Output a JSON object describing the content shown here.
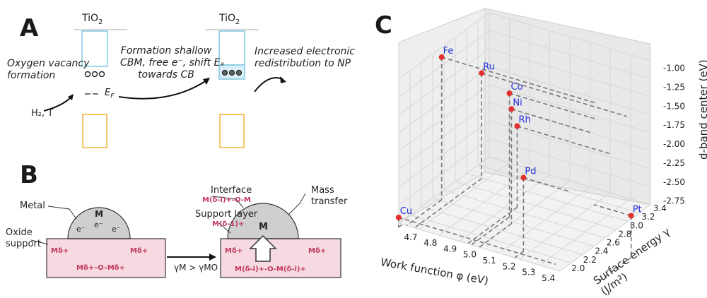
{
  "panel_a": {
    "letter": "A",
    "tio2_left": "TiO",
    "tio2_right": "TiO",
    "tio2_sub": "2",
    "oxygen_vacancy": "Oxygen vacancy\nformation",
    "formation_shallow": "Formation shallow\nCBM, free e⁻, shift Eₓ\ntowards CB",
    "increased": "Increased electronic\nredistribution to NP",
    "h2": "H₂, T",
    "ef": "E",
    "ef_sub": "F",
    "colors": {
      "cb": "#7ec8e3",
      "vb": "#f2b233",
      "arrow": "#111111"
    }
  },
  "panel_b": {
    "letter": "B",
    "metal": "Metal",
    "oxide": "Oxide\nsupport",
    "m_label": "M",
    "e_label": "e⁻",
    "md_plus": "Mᵟ⁺",
    "md_left": "Mδ+",
    "md_o_md": "Mδ+–O–Mδ+",
    "interface": "Interface",
    "interface_formula": "M(δ-i)+-O-M",
    "support_layer": "Support layer",
    "support_formula": "M(δ-1)+",
    "mass_transfer": "Mass\ntransfer",
    "bottom_formula": "M(δ-i)+-O-M(δ-i)+",
    "gamma": "γM > γMO",
    "colors": {
      "support": "#f7d9e1",
      "metal": "#c8c8c8",
      "accent": "#c0395f"
    }
  },
  "panel_c": {
    "letter": "C",
    "chart_data": {
      "type": "scatter",
      "xlabel": "Work function φ (eV)",
      "ylabel": "Surface energy γ (J/m²)",
      "zlabel": "d-band center (eV)",
      "x_ticks": [
        "4.7",
        "4.8",
        "4.9",
        "5.0",
        "5.1",
        "5.2",
        "5.3",
        "5.4"
      ],
      "y_ticks": [
        "2.0",
        "2.2",
        "2.4",
        "2.6",
        "2.8",
        "3.0",
        "3.2",
        "3.4"
      ],
      "z_ticks": [
        "-1.00",
        "-1.25",
        "-1.50",
        "-1.75",
        "-2.00",
        "-2.25",
        "-2.50",
        "-2.75"
      ],
      "points": [
        {
          "label": "Fe",
          "x": 4.67,
          "y": 2.5,
          "z": -0.92
        },
        {
          "label": "Ru",
          "x": 4.71,
          "y": 3.05,
          "z": -1.41
        },
        {
          "label": "Co",
          "x": 5.0,
          "y": 2.55,
          "z": -1.17
        },
        {
          "label": "Rh",
          "x": 4.98,
          "y": 2.75,
          "z": -1.73
        },
        {
          "label": "Ni",
          "x": 5.04,
          "y": 2.45,
          "z": -1.29
        },
        {
          "label": "Pd",
          "x": 5.22,
          "y": 2.05,
          "z": -1.83
        },
        {
          "label": "Pt",
          "x": 5.64,
          "y": 2.48,
          "z": -2.25
        },
        {
          "label": "Cu",
          "x": 4.65,
          "y": 1.83,
          "z": -2.67
        }
      ],
      "colors": {
        "point": "#e03030",
        "label": "#1f2fd6",
        "dash": "#777777"
      }
    }
  }
}
